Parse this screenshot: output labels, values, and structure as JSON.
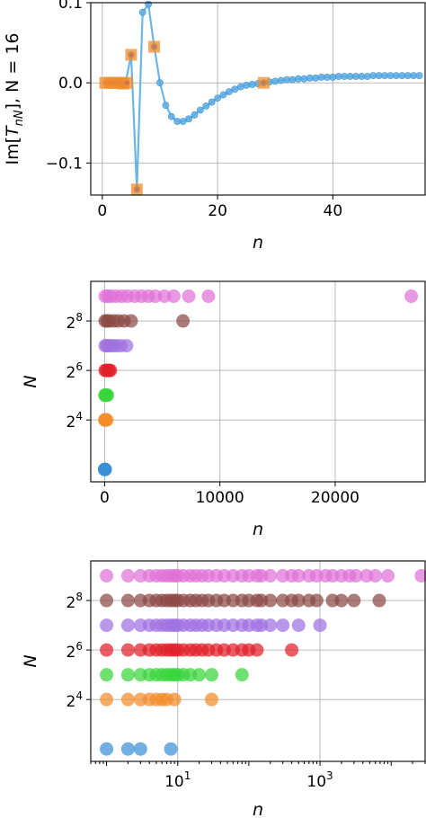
{
  "colors": {
    "blue": "#5dade2",
    "blue_edge": "#3a8fd6",
    "orange": "#f28c28",
    "N2": "#3a8fd6",
    "N4": "#f28c28",
    "N5": "#39d43a",
    "N6": "#e0202a",
    "N7": "#a070e0",
    "N8": "#8c4a45",
    "N9": "#e070d8"
  },
  "chart_data": [
    {
      "type": "line",
      "ylabel": "Im[T_{nN}], N = 16",
      "ylabel_parts": {
        "main": "Im[",
        "T": "T",
        "sub": "nN",
        "rest": "], N = 16"
      },
      "xlabel": "n",
      "xlim": [
        -2,
        56
      ],
      "ylim": [
        -0.14,
        0.1
      ],
      "grid": true,
      "xticks": [
        {
          "v": 0,
          "label": "0"
        },
        {
          "v": 20,
          "label": "20"
        },
        {
          "v": 40,
          "label": "40"
        }
      ],
      "yticks": [
        {
          "v": 0.1,
          "label": "0.1"
        },
        {
          "v": 0.0,
          "label": "0.0"
        },
        {
          "v": -0.1,
          "label": "−0.1"
        }
      ],
      "series": [
        {
          "marker": "circle",
          "x": [
            1,
            2,
            3,
            4,
            5,
            6,
            7,
            8,
            9,
            10,
            11,
            12,
            13,
            14,
            15,
            16,
            17,
            18,
            19,
            20,
            21,
            22,
            23,
            24,
            25,
            26,
            27,
            28,
            29,
            30,
            31,
            32,
            33,
            34,
            35,
            36,
            37,
            38,
            39,
            40,
            41,
            42,
            43,
            44,
            45,
            46,
            47,
            48,
            49,
            50,
            51,
            52,
            53,
            54,
            55
          ],
          "y": [
            0.0,
            0.0,
            0.0,
            -0.001,
            0.035,
            -0.133,
            0.088,
            0.098,
            0.045,
            0.0,
            -0.028,
            -0.042,
            -0.048,
            -0.048,
            -0.045,
            -0.04,
            -0.034,
            -0.029,
            -0.024,
            -0.019,
            -0.015,
            -0.011,
            -0.008,
            -0.005,
            -0.003,
            -0.002,
            -0.001,
            0.0,
            0.001,
            0.002,
            0.003,
            0.004,
            0.004,
            0.005,
            0.005,
            0.006,
            0.006,
            0.007,
            0.007,
            0.007,
            0.008,
            0.008,
            0.008,
            0.008,
            0.008,
            0.008,
            0.009,
            0.009,
            0.009,
            0.009,
            0.009,
            0.009,
            0.009,
            0.009,
            0.009
          ]
        },
        {
          "marker": "square",
          "x": [
            0.5,
            1.2,
            1.8,
            2.5,
            3.1,
            3.7,
            4.3,
            5,
            6,
            9,
            28
          ],
          "y": [
            0.0,
            0.0,
            0.0,
            0.0,
            0.0,
            -0.001,
            0.0,
            0.035,
            -0.133,
            0.045,
            0.0
          ]
        }
      ]
    },
    {
      "type": "scatter",
      "ylabel": "N",
      "xlabel": "n",
      "xlim": [
        -1200,
        27800
      ],
      "ylim": [
        1.5,
        9.6
      ],
      "grid": true,
      "xticks": [
        {
          "v": 0,
          "label": "0"
        },
        {
          "v": 10000,
          "label": "10000"
        },
        {
          "v": 20000,
          "label": "20000"
        }
      ],
      "yticks": [
        {
          "v": 4,
          "base": "2",
          "exp": "4"
        },
        {
          "v": 6,
          "base": "2",
          "exp": "6"
        },
        {
          "v": 8,
          "base": "2",
          "exp": "8"
        }
      ],
      "series": [
        {
          "log2N": 2,
          "x": [
            5,
            10,
            30,
            60
          ]
        },
        {
          "log2N": 4,
          "x": [
            10,
            50,
            100,
            200
          ]
        },
        {
          "log2N": 5,
          "x": [
            20,
            60,
            150,
            250
          ]
        },
        {
          "log2N": 6,
          "x": [
            50,
            150,
            300,
            400,
            500
          ]
        },
        {
          "log2N": 7,
          "x": [
            50,
            200,
            400,
            700,
            1000,
            1400,
            1900
          ]
        },
        {
          "log2N": 8,
          "x": [
            50,
            200,
            400,
            800,
            1200,
            1700,
            2300,
            6800
          ]
        },
        {
          "log2N": 9,
          "x": [
            50,
            300,
            600,
            1000,
            1500,
            2000,
            2600,
            3200,
            3800,
            4400,
            5200,
            6000,
            7300,
            9000,
            26600
          ]
        }
      ]
    },
    {
      "type": "scatter",
      "ylabel": "N",
      "xlabel": "n",
      "xscale": "log",
      "xlim": [
        0.6,
        30000
      ],
      "ylim": [
        1.5,
        9.6
      ],
      "grid": true,
      "xticks": [
        {
          "v": 10,
          "base": "10",
          "exp": "1"
        },
        {
          "v": 1000,
          "base": "10",
          "exp": "3"
        }
      ],
      "yticks": [
        {
          "v": 4,
          "base": "2",
          "exp": "4"
        },
        {
          "v": 6,
          "base": "2",
          "exp": "6"
        },
        {
          "v": 8,
          "base": "2",
          "exp": "8"
        }
      ],
      "series": [
        {
          "log2N": 2,
          "x": [
            1,
            2,
            3,
            8
          ]
        },
        {
          "log2N": 4,
          "x": [
            1,
            2,
            3,
            4,
            5,
            6,
            7,
            9,
            30
          ]
        },
        {
          "log2N": 5,
          "x": [
            1,
            2,
            3,
            4,
            5,
            6,
            7,
            8,
            9,
            10,
            12,
            15,
            20,
            30,
            80
          ]
        },
        {
          "log2N": 6,
          "x": [
            1,
            2,
            3,
            4,
            5,
            6,
            7,
            8,
            9,
            10,
            12,
            15,
            18,
            22,
            27,
            35,
            45,
            60,
            80,
            100,
            130,
            400
          ]
        },
        {
          "log2N": 7,
          "x": [
            1,
            2,
            3,
            4,
            5,
            6,
            7,
            8,
            9,
            10,
            12,
            15,
            18,
            22,
            27,
            35,
            45,
            60,
            80,
            100,
            130,
            150,
            200,
            300,
            500,
            1000
          ]
        },
        {
          "log2N": 8,
          "x": [
            1,
            2,
            3,
            4,
            5,
            6,
            7,
            8,
            9,
            10,
            12,
            15,
            18,
            22,
            27,
            35,
            45,
            60,
            80,
            100,
            130,
            150,
            200,
            300,
            400,
            500,
            700,
            900,
            1500,
            2000,
            3000,
            6800
          ]
        },
        {
          "log2N": 9,
          "x": [
            1,
            2,
            3,
            4,
            5,
            6,
            7,
            8,
            9,
            10,
            12,
            15,
            18,
            22,
            27,
            35,
            45,
            60,
            80,
            100,
            130,
            150,
            200,
            300,
            400,
            500,
            700,
            900,
            1200,
            1500,
            2000,
            2600,
            3200,
            4500,
            6000,
            9000,
            26600
          ]
        }
      ]
    }
  ]
}
